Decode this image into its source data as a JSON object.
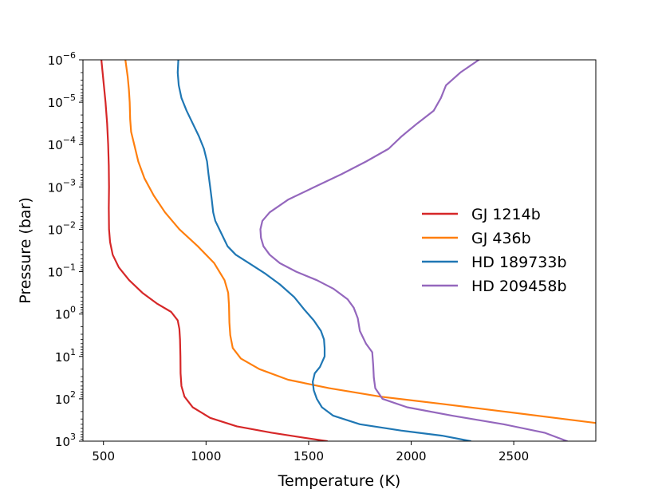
{
  "chart_data": {
    "type": "line",
    "title": "",
    "xlabel": "Temperature (K)",
    "ylabel": "Pressure (bar)",
    "xlim": [
      400,
      2900
    ],
    "ylim_log10": [
      -6,
      3
    ],
    "y_scale": "log",
    "y_inverted": true,
    "x_ticks": [
      {
        "value": 500,
        "label": "500"
      },
      {
        "value": 1000,
        "label": "1000"
      },
      {
        "value": 1500,
        "label": "1500"
      },
      {
        "value": 2000,
        "label": "2000"
      },
      {
        "value": 2500,
        "label": "2500"
      }
    ],
    "y_ticks": [
      {
        "exp": -6,
        "base": "10",
        "sup": "−6"
      },
      {
        "exp": -5,
        "base": "10",
        "sup": "−5"
      },
      {
        "exp": -4,
        "base": "10",
        "sup": "−4"
      },
      {
        "exp": -3,
        "base": "10",
        "sup": "−3"
      },
      {
        "exp": -2,
        "base": "10",
        "sup": "−2"
      },
      {
        "exp": -1,
        "base": "10",
        "sup": "−1"
      },
      {
        "exp": 0,
        "base": "10",
        "sup": "0"
      },
      {
        "exp": 1,
        "base": "10",
        "sup": "1"
      },
      {
        "exp": 2,
        "base": "10",
        "sup": "2"
      },
      {
        "exp": 3,
        "base": "10",
        "sup": "3"
      }
    ],
    "legend_position": "center-right",
    "series": [
      {
        "name": "GJ 1214b",
        "color": "#d62728",
        "points": [
          [
            490,
            -6.0
          ],
          [
            500,
            -5.5
          ],
          [
            510,
            -5.0
          ],
          [
            518,
            -4.5
          ],
          [
            523,
            -4.0
          ],
          [
            526,
            -3.5
          ],
          [
            527,
            -3.0
          ],
          [
            526,
            -2.5
          ],
          [
            527,
            -2.0
          ],
          [
            532,
            -1.7
          ],
          [
            545,
            -1.4
          ],
          [
            575,
            -1.1
          ],
          [
            625,
            -0.8
          ],
          [
            690,
            -0.5
          ],
          [
            760,
            -0.25
          ],
          [
            830,
            -0.05
          ],
          [
            862,
            0.15
          ],
          [
            870,
            0.35
          ],
          [
            873,
            0.6
          ],
          [
            875,
            1.0
          ],
          [
            876,
            1.4
          ],
          [
            880,
            1.7
          ],
          [
            895,
            1.95
          ],
          [
            935,
            2.2
          ],
          [
            1020,
            2.45
          ],
          [
            1150,
            2.65
          ],
          [
            1320,
            2.8
          ],
          [
            1480,
            2.92
          ],
          [
            1590,
            3.0
          ]
        ]
      },
      {
        "name": "GJ 436b",
        "color": "#ff7f0e",
        "points": [
          [
            607,
            -6.0
          ],
          [
            618,
            -5.6
          ],
          [
            624,
            -5.3
          ],
          [
            628,
            -5.0
          ],
          [
            630,
            -4.6
          ],
          [
            635,
            -4.3
          ],
          [
            650,
            -4.0
          ],
          [
            670,
            -3.6
          ],
          [
            700,
            -3.2
          ],
          [
            745,
            -2.8
          ],
          [
            800,
            -2.4
          ],
          [
            870,
            -2.0
          ],
          [
            960,
            -1.6
          ],
          [
            1040,
            -1.2
          ],
          [
            1090,
            -0.8
          ],
          [
            1108,
            -0.5
          ],
          [
            1112,
            -0.2
          ],
          [
            1114,
            0.2
          ],
          [
            1118,
            0.5
          ],
          [
            1130,
            0.8
          ],
          [
            1170,
            1.05
          ],
          [
            1260,
            1.3
          ],
          [
            1400,
            1.55
          ],
          [
            1600,
            1.75
          ],
          [
            1850,
            1.95
          ],
          [
            2150,
            2.12
          ],
          [
            2450,
            2.3
          ],
          [
            2700,
            2.45
          ],
          [
            2900,
            2.57
          ]
        ]
      },
      {
        "name": "HD 189733b",
        "color": "#1f77b4",
        "points": [
          [
            865,
            -6.0
          ],
          [
            862,
            -5.7
          ],
          [
            867,
            -5.4
          ],
          [
            880,
            -5.1
          ],
          [
            905,
            -4.8
          ],
          [
            935,
            -4.5
          ],
          [
            965,
            -4.2
          ],
          [
            990,
            -3.9
          ],
          [
            1005,
            -3.6
          ],
          [
            1012,
            -3.3
          ],
          [
            1020,
            -3.0
          ],
          [
            1028,
            -2.7
          ],
          [
            1035,
            -2.4
          ],
          [
            1045,
            -2.2
          ],
          [
            1065,
            -2.0
          ],
          [
            1085,
            -1.8
          ],
          [
            1105,
            -1.6
          ],
          [
            1145,
            -1.4
          ],
          [
            1210,
            -1.2
          ],
          [
            1290,
            -0.95
          ],
          [
            1360,
            -0.7
          ],
          [
            1430,
            -0.4
          ],
          [
            1480,
            -0.1
          ],
          [
            1525,
            0.15
          ],
          [
            1560,
            0.4
          ],
          [
            1575,
            0.6
          ],
          [
            1578,
            0.8
          ],
          [
            1578,
            1.0
          ],
          [
            1555,
            1.25
          ],
          [
            1530,
            1.4
          ],
          [
            1520,
            1.6
          ],
          [
            1525,
            1.8
          ],
          [
            1540,
            2.0
          ],
          [
            1565,
            2.2
          ],
          [
            1620,
            2.4
          ],
          [
            1750,
            2.6
          ],
          [
            1950,
            2.75
          ],
          [
            2150,
            2.87
          ],
          [
            2290,
            3.0
          ]
        ]
      },
      {
        "name": "HD 209458b",
        "color": "#9467bd",
        "points": [
          [
            2330,
            -6.0
          ],
          [
            2240,
            -5.7
          ],
          [
            2170,
            -5.4
          ],
          [
            2145,
            -5.1
          ],
          [
            2110,
            -4.8
          ],
          [
            2030,
            -4.5
          ],
          [
            1955,
            -4.2
          ],
          [
            1890,
            -3.9
          ],
          [
            1780,
            -3.6
          ],
          [
            1660,
            -3.3
          ],
          [
            1530,
            -3.0
          ],
          [
            1400,
            -2.7
          ],
          [
            1310,
            -2.4
          ],
          [
            1275,
            -2.2
          ],
          [
            1265,
            -2.0
          ],
          [
            1268,
            -1.8
          ],
          [
            1280,
            -1.6
          ],
          [
            1310,
            -1.4
          ],
          [
            1360,
            -1.2
          ],
          [
            1440,
            -1.0
          ],
          [
            1540,
            -0.8
          ],
          [
            1620,
            -0.6
          ],
          [
            1690,
            -0.35
          ],
          [
            1720,
            -0.15
          ],
          [
            1740,
            0.1
          ],
          [
            1750,
            0.4
          ],
          [
            1780,
            0.7
          ],
          [
            1810,
            0.9
          ],
          [
            1815,
            1.2
          ],
          [
            1818,
            1.5
          ],
          [
            1825,
            1.75
          ],
          [
            1860,
            2.0
          ],
          [
            1980,
            2.2
          ],
          [
            2200,
            2.4
          ],
          [
            2450,
            2.6
          ],
          [
            2650,
            2.8
          ],
          [
            2760,
            3.0
          ]
        ]
      }
    ]
  }
}
